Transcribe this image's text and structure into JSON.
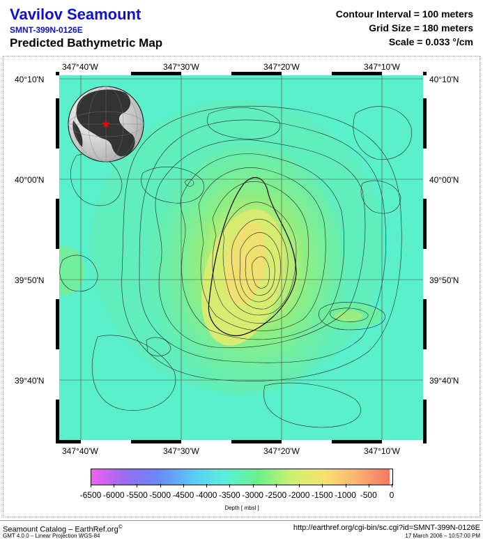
{
  "header": {
    "title": "Vavilov Seamount",
    "id": "SMNT-399N-0126E",
    "subtitle": "Predicted Bathymetric Map",
    "contour_interval": "Contour Interval = 100 meters",
    "grid_size": "Grid Size = 180 meters",
    "scale": "Scale = 0.033 °/cm"
  },
  "map": {
    "lon_labels": [
      "347°40'W",
      "347°30'W",
      "347°20'W",
      "347°10'W"
    ],
    "lat_labels": [
      "40°10'N",
      "40°00'N",
      "39°50'N",
      "39°40'N"
    ],
    "background_color": "#5af0cc",
    "globe_marker_color": "#ff0000"
  },
  "colorbar": {
    "ticks": [
      "-6500",
      "-6000",
      "-5500",
      "-5000",
      "-4500",
      "-4000",
      "-3500",
      "-3000",
      "-2500",
      "-2000",
      "-1500",
      "-1000",
      "-500",
      "0"
    ],
    "label": "Depth [ mbsl ]",
    "colors": [
      "#f060f0",
      "#9a6cf0",
      "#6a88f6",
      "#5ac8fa",
      "#5af0d8",
      "#6af08a",
      "#cdf070",
      "#f8e070",
      "#f8b070",
      "#f87060"
    ]
  },
  "footer": {
    "left_main": "Seamount Catalog – EarthRef.org",
    "copyright": "©",
    "left_small": "GMT 4.0.0 – Linear Projection WGS-84",
    "right_main": "http://earthref.org/cgi-bin/sc.cgi?id=SMNT-399N-0126E",
    "right_small": "17 March 2006 – 10:57:00 PM"
  }
}
